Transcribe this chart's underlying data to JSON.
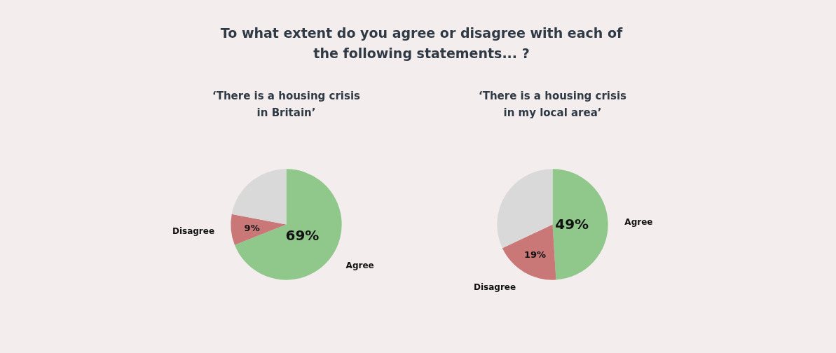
{
  "chart_data": [
    {
      "type": "pie",
      "title": "To what extent do you agree or disagree with each of the following statements... ?",
      "subtitle": "‘There is a housing crisis in Britain’",
      "categories": [
        "Agree",
        "Disagree",
        null
      ],
      "values": [
        69,
        9,
        22
      ],
      "colors": [
        "#8fc88a",
        "#c97777",
        "#d9d9d9"
      ],
      "value_labels": [
        "69%",
        "9%",
        null
      ]
    },
    {
      "type": "pie",
      "subtitle": "‘There is a housing crisis in my local area’",
      "categories": [
        "Agree",
        "Disagree",
        null
      ],
      "values": [
        49,
        19,
        32
      ],
      "colors": [
        "#8fc88a",
        "#c97777",
        "#d9d9d9"
      ],
      "value_labels": [
        "49%",
        "19%",
        null
      ]
    }
  ]
}
